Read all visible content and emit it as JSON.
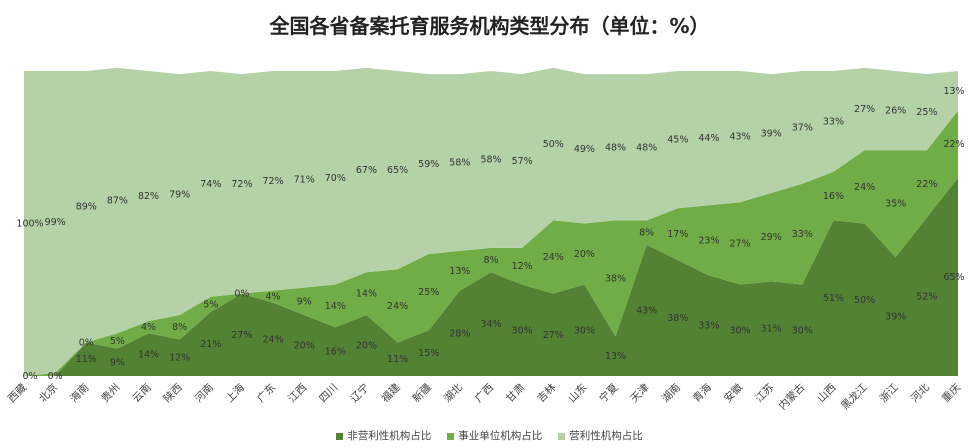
{
  "chart_data": {
    "type": "area",
    "stacked": "percent",
    "title": "全国各省备案托育服务机构类型分布（单位：%）",
    "categories": [
      "西藏",
      "北京",
      "海南",
      "贵州",
      "云南",
      "陕西",
      "河南",
      "上海",
      "广东",
      "江西",
      "四川",
      "辽宁",
      "福建",
      "新疆",
      "湖北",
      "广西",
      "甘肃",
      "吉林",
      "山东",
      "宁夏",
      "天津",
      "湖南",
      "青海",
      "安徽",
      "江苏",
      "内蒙古",
      "山西",
      "黑龙江",
      "浙江",
      "河北",
      "重庆"
    ],
    "series": [
      {
        "name": "非营利性机构占比",
        "color": "#548235",
        "values": [
          0,
          0,
          11,
          9,
          14,
          12,
          21,
          27,
          24,
          20,
          16,
          20,
          11,
          15,
          28,
          34,
          30,
          27,
          30,
          13,
          43,
          38,
          33,
          30,
          31,
          30,
          51,
          50,
          39,
          52,
          65
        ],
        "labels": [
          "0%",
          "0%",
          "11%",
          "9%",
          "14%",
          "12%",
          "21%",
          "27%",
          "24%",
          "20%",
          "16%",
          "20%",
          "11%",
          "15%",
          "28%",
          "34%",
          "30%",
          "27%",
          "30%",
          "13%",
          "43%",
          "38%",
          "33%",
          "30%",
          "31%",
          "30%",
          "51%",
          "50%",
          "39%",
          "52%",
          "65%"
        ]
      },
      {
        "name": "事业单位机构占比",
        "color": "#70ad47",
        "values": [
          0,
          1,
          0,
          5,
          4,
          8,
          5,
          0,
          4,
          9,
          14,
          14,
          24,
          25,
          13,
          8,
          12,
          24,
          20,
          38,
          8,
          17,
          23,
          27,
          29,
          33,
          16,
          24,
          35,
          22,
          22
        ],
        "labels": [
          "",
          "",
          "0%",
          "5%",
          "4%",
          "8%",
          "5%",
          "0%",
          "4%",
          "9%",
          "14%",
          "14%",
          "24%",
          "25%",
          "13%",
          "8%",
          "12%",
          "24%",
          "20%",
          "38%",
          "8%",
          "17%",
          "23%",
          "27%",
          "29%",
          "33%",
          "16%",
          "24%",
          "35%",
          "22%",
          "22%"
        ]
      },
      {
        "name": "营利性机构占比",
        "color": "#b5d1a7",
        "values": [
          100,
          99,
          89,
          87,
          82,
          79,
          74,
          72,
          72,
          71,
          70,
          67,
          65,
          59,
          58,
          58,
          57,
          50,
          49,
          48,
          48,
          45,
          44,
          43,
          39,
          37,
          33,
          27,
          26,
          25,
          13
        ],
        "labels": [
          "100%",
          "99%",
          "89%",
          "87%",
          "82%",
          "79%",
          "74%",
          "72%",
          "72%",
          "71%",
          "70%",
          "67%",
          "65%",
          "59%",
          "58%",
          "58%",
          "57%",
          "50%",
          "49%",
          "48%",
          "48%",
          "45%",
          "44%",
          "43%",
          "39%",
          "37%",
          "33%",
          "27%",
          "26%",
          "25%",
          "13%"
        ]
      }
    ],
    "legend": {
      "position": "bottom"
    },
    "grid": false,
    "ylim": [
      0,
      100
    ]
  }
}
